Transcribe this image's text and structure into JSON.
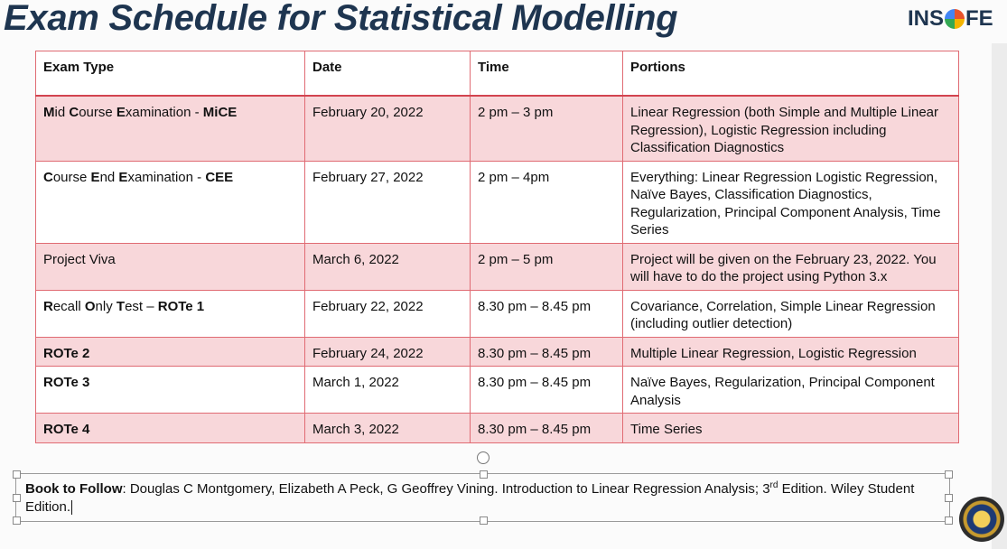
{
  "slide": {
    "title": "Exam Schedule for Statistical Modelling",
    "logo": {
      "text_before": "INS",
      "text_after": "FE",
      "icon": "insofe-logo"
    }
  },
  "table": {
    "headers": [
      "Exam Type",
      "Date",
      "Time",
      "Portions"
    ],
    "rows": [
      {
        "exam_segments": [
          {
            "t": "M",
            "b": true
          },
          {
            "t": "id ",
            "b": false
          },
          {
            "t": "C",
            "b": true
          },
          {
            "t": "ourse ",
            "b": false
          },
          {
            "t": "E",
            "b": true
          },
          {
            "t": "xamination - ",
            "b": false
          },
          {
            "t": "MiCE",
            "b": true
          }
        ],
        "date": "February 20, 2022",
        "time": "2 pm – 3 pm",
        "portions": "Linear Regression (both Simple and Multiple Linear Regression), Logistic Regression including Classification Diagnostics"
      },
      {
        "exam_segments": [
          {
            "t": "C",
            "b": true
          },
          {
            "t": "ourse ",
            "b": false
          },
          {
            "t": "E",
            "b": true
          },
          {
            "t": "nd ",
            "b": false
          },
          {
            "t": "E",
            "b": true
          },
          {
            "t": "xamination - ",
            "b": false
          },
          {
            "t": "CEE",
            "b": true
          }
        ],
        "date": "February 27, 2022",
        "time": "2 pm – 4pm",
        "portions": "Everything: Linear Regression Logistic Regression, Naïve Bayes, Classification Diagnostics, Regularization, Principal Component Analysis, Time Series"
      },
      {
        "exam_segments": [
          {
            "t": "Project Viva",
            "b": false
          }
        ],
        "date": "March 6, 2022",
        "time": "2 pm – 5 pm",
        "portions": "Project will be given on the February 23, 2022. You will have to do the project using Python 3.x"
      },
      {
        "exam_segments": [
          {
            "t": "R",
            "b": true
          },
          {
            "t": "ecall ",
            "b": false
          },
          {
            "t": "O",
            "b": true
          },
          {
            "t": "nly ",
            "b": false
          },
          {
            "t": "T",
            "b": true
          },
          {
            "t": "est – ",
            "b": false
          },
          {
            "t": "ROTe 1",
            "b": true
          }
        ],
        "date": "February 22, 2022",
        "time": "8.30 pm – 8.45 pm",
        "portions": "Covariance, Correlation, Simple Linear Regression (including outlier detection)"
      },
      {
        "exam_segments": [
          {
            "t": "ROTe 2",
            "b": true
          }
        ],
        "date": "February 24, 2022",
        "time": "8.30 pm – 8.45 pm",
        "portions": "Multiple Linear Regression, Logistic Regression"
      },
      {
        "exam_segments": [
          {
            "t": "ROTe 3",
            "b": true
          }
        ],
        "date": "March 1, 2022",
        "time": "8.30 pm – 8.45 pm",
        "portions": "Naïve Bayes, Regularization, Principal Component Analysis"
      },
      {
        "exam_segments": [
          {
            "t": "ROTe 4",
            "b": true
          }
        ],
        "date": "March 3, 2022",
        "time": "8.30 pm – 8.45 pm",
        "portions": "Time Series"
      }
    ]
  },
  "book": {
    "label": "Book to Follow",
    "text_before_sup": ": Douglas C Montgomery, Elizabeth A Peck, G Geoffrey Vining. Introduction to Linear Regression Analysis; 3",
    "sup": "rd",
    "text_after_sup": " Edition. Wiley Student Edition."
  },
  "colors": {
    "title": "#1e3550",
    "row_fill": "#f8d7da",
    "border": "#e06b73"
  }
}
